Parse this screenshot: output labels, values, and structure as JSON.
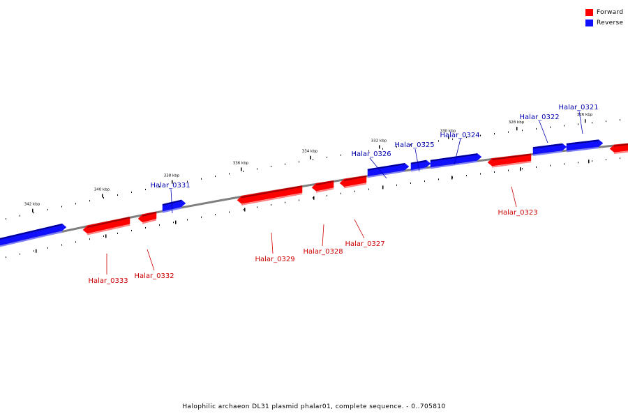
{
  "caption": "Halophilic archaeon DL31 plasmid phalar01, complete sequence. - 0..705810",
  "colors": {
    "forward": "#ff0000",
    "reverse": "#1010ff",
    "backbone": "#808080",
    "forward_label": "#cc0000",
    "reverse_label": "#0000b0"
  },
  "legend": [
    {
      "label": "Forward",
      "strand": "forward"
    },
    {
      "label": "Reverse",
      "strand": "reverse"
    }
  ],
  "ticks": [
    {
      "kbp": 342,
      "label": "342 kbp"
    },
    {
      "kbp": 340,
      "label": "340 kbp"
    },
    {
      "kbp": 338,
      "label": "338 kbp"
    },
    {
      "kbp": 336,
      "label": "336 kbp"
    },
    {
      "kbp": 334,
      "label": "334 kbp"
    },
    {
      "kbp": 332,
      "label": "332 kbp"
    },
    {
      "kbp": 330,
      "label": "330 kbp"
    },
    {
      "kbp": 328,
      "label": "328 kbp"
    },
    {
      "kbp": 326,
      "label": "326 kbp"
    }
  ],
  "genes": [
    {
      "name": "",
      "strand": "reverse"
    },
    {
      "name": "Halar_0333",
      "strand": "forward"
    },
    {
      "name": "Halar_0332",
      "strand": "forward"
    },
    {
      "name": "Halar_0331",
      "strand": "reverse"
    },
    {
      "name": "Halar_0329",
      "strand": "forward"
    },
    {
      "name": "Halar_0328",
      "strand": "forward"
    },
    {
      "name": "Halar_0327",
      "strand": "forward"
    },
    {
      "name": "Halar_0326",
      "strand": "reverse"
    },
    {
      "name": "Halar_0325",
      "strand": "reverse"
    },
    {
      "name": "Halar_0324",
      "strand": "reverse"
    },
    {
      "name": "Halar_0323",
      "strand": "forward"
    },
    {
      "name": "Halar_0322",
      "strand": "reverse"
    },
    {
      "name": "Halar_0321",
      "strand": "reverse"
    },
    {
      "name": "",
      "strand": "forward"
    }
  ]
}
